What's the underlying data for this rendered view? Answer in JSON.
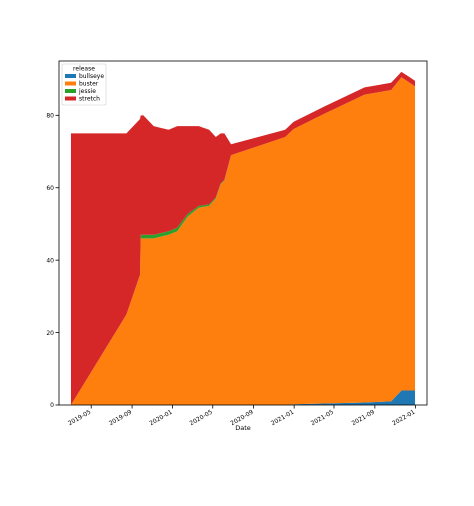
{
  "chart_data": {
    "type": "area",
    "stacked": true,
    "xlabel": "Date",
    "ylabel": "",
    "title": "",
    "x_range": [
      "2019-01-24",
      "2022-02-05"
    ],
    "ylim": [
      0,
      95
    ],
    "x_ticks": [
      "2019-05",
      "2019-09",
      "2020-01",
      "2020-05",
      "2020-09",
      "2021-01",
      "2021-05",
      "2021-09",
      "2022-01"
    ],
    "y_ticks": [
      0,
      20,
      40,
      60,
      80
    ],
    "grid": false,
    "legend": {
      "title": "release",
      "placement": "top-left"
    },
    "x": [
      "2019-03-01",
      "2019-08-15",
      "2019-09-25",
      "2019-09-27",
      "2019-10-05",
      "2019-11-05",
      "2019-12-20",
      "2020-01-15",
      "2020-02-15",
      "2020-03-20",
      "2020-04-20",
      "2020-05-10",
      "2020-05-25",
      "2020-06-05",
      "2020-06-25",
      "2020-12-05",
      "2020-12-30",
      "2021-04-01",
      "2021-08-01",
      "2021-10-20",
      "2021-11-20",
      "2021-12-15",
      "2021-12-31"
    ],
    "series": [
      {
        "name": "bullseye",
        "color": "#1f77b4",
        "values": [
          0,
          0,
          0,
          0,
          0,
          0,
          0,
          0,
          0,
          0,
          0,
          0,
          0,
          0,
          0,
          0,
          0.2,
          0.4,
          0.7,
          1,
          4,
          4,
          4
        ]
      },
      {
        "name": "buster",
        "color": "#ff7f0e",
        "values": [
          0,
          25,
          36,
          46,
          46,
          46,
          47,
          48,
          52,
          54.5,
          55,
          57,
          61,
          62,
          69,
          74,
          76,
          80,
          85,
          86,
          86.5,
          85,
          84
        ]
      },
      {
        "name": "jessie",
        "color": "#2ca02c",
        "values": [
          0,
          0,
          0,
          1,
          1,
          1,
          1,
          1,
          0.7,
          0.5,
          0.4,
          0.3,
          0.2,
          0.2,
          0,
          0,
          0,
          0,
          0,
          0,
          0,
          0,
          0
        ]
      },
      {
        "name": "stretch",
        "color": "#d62728",
        "values": [
          75,
          50,
          43,
          33,
          33,
          30,
          28,
          28,
          24.3,
          22,
          20.6,
          16.7,
          13.8,
          12.8,
          3,
          2,
          2,
          2,
          2,
          2,
          1.5,
          1.5,
          1.5
        ]
      }
    ]
  }
}
